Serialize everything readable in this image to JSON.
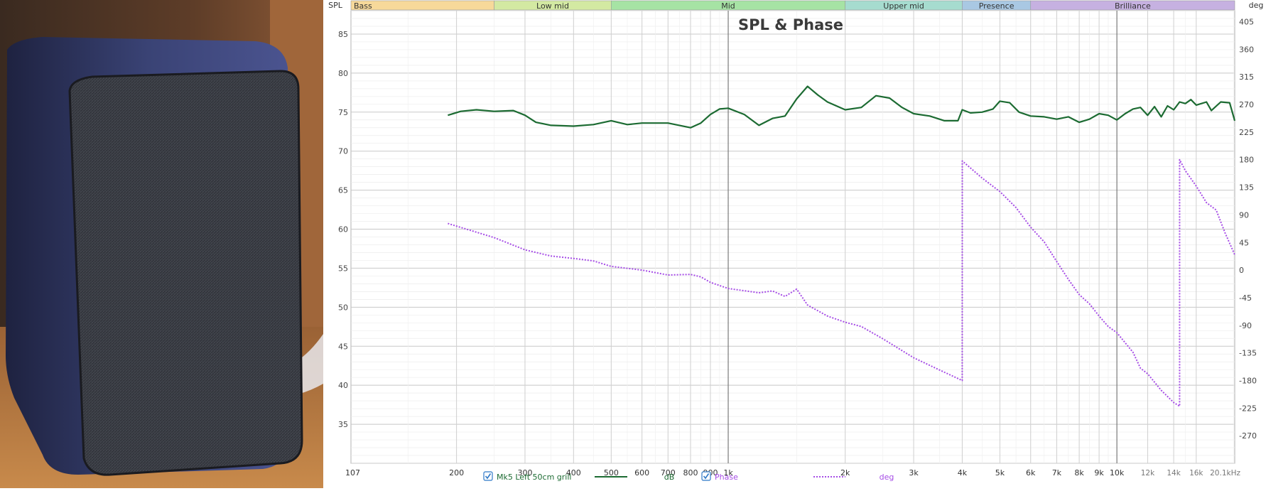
{
  "chart_data": {
    "type": "line",
    "title": "SPL & Phase",
    "left_axis": {
      "label": "SPL",
      "ticks": [
        35,
        40,
        45,
        50,
        55,
        60,
        65,
        70,
        75,
        80,
        85
      ],
      "range": [
        30,
        88
      ]
    },
    "right_axis": {
      "label": "deg",
      "ticks": [
        405,
        360,
        315,
        270,
        225,
        180,
        135,
        90,
        45,
        0,
        -45,
        -90,
        -135,
        -180,
        -225,
        -270
      ],
      "range": [
        -315,
        423
      ]
    },
    "x_axis": {
      "scale": "log",
      "range_hz": [
        107,
        20100
      ],
      "unit": "Hz",
      "tick_values": [
        107,
        200,
        300,
        400,
        500,
        600,
        700,
        800,
        900,
        1000,
        2000,
        3000,
        4000,
        5000,
        6000,
        7000,
        8000,
        9000,
        10000,
        12000,
        14000,
        16000,
        20100
      ],
      "tick_labels": [
        "107",
        "200",
        "300",
        "400",
        "500",
        "600",
        "700",
        "800",
        "900",
        "1k",
        "2k",
        "3k",
        "4k",
        "5k",
        "6k",
        "7k",
        "8k",
        "9k",
        "10k",
        "12k",
        "14k",
        "16k",
        "20.1kHz"
      ],
      "gridlines": "on",
      "minor_gridlines": "on"
    },
    "bands": [
      {
        "name": "Bass",
        "from": 107,
        "to": 250,
        "color": "#f7d99a"
      },
      {
        "name": "Low mid",
        "from": 250,
        "to": 500,
        "color": "#d3e9a2"
      },
      {
        "name": "Mid",
        "from": 500,
        "to": 2000,
        "color": "#a6e3a4"
      },
      {
        "name": "Upper mid",
        "from": 2000,
        "to": 4000,
        "color": "#a6dccf"
      },
      {
        "name": "Presence",
        "from": 4000,
        "to": 6000,
        "color": "#a9c8e3"
      },
      {
        "name": "Brilliance",
        "from": 6000,
        "to": 20100,
        "color": "#c6b1e1"
      }
    ],
    "series": [
      {
        "name": "Mk5 Left 50cm grill",
        "unit": "dB",
        "axis": "left",
        "color": "#1c6b32",
        "style": "solid",
        "points": [
          [
            190,
            74.6
          ],
          [
            205,
            75.1
          ],
          [
            225,
            75.3
          ],
          [
            250,
            75.1
          ],
          [
            280,
            75.2
          ],
          [
            300,
            74.6
          ],
          [
            320,
            73.7
          ],
          [
            350,
            73.3
          ],
          [
            400,
            73.2
          ],
          [
            450,
            73.4
          ],
          [
            500,
            73.9
          ],
          [
            550,
            73.4
          ],
          [
            600,
            73.6
          ],
          [
            700,
            73.6
          ],
          [
            800,
            73.0
          ],
          [
            850,
            73.6
          ],
          [
            900,
            74.7
          ],
          [
            950,
            75.4
          ],
          [
            1000,
            75.5
          ],
          [
            1100,
            74.7
          ],
          [
            1200,
            73.3
          ],
          [
            1300,
            74.2
          ],
          [
            1400,
            74.5
          ],
          [
            1500,
            76.7
          ],
          [
            1600,
            78.3
          ],
          [
            1700,
            77.2
          ],
          [
            1800,
            76.3
          ],
          [
            2000,
            75.3
          ],
          [
            2200,
            75.6
          ],
          [
            2400,
            77.1
          ],
          [
            2600,
            76.8
          ],
          [
            2800,
            75.6
          ],
          [
            3000,
            74.8
          ],
          [
            3300,
            74.5
          ],
          [
            3600,
            73.9
          ],
          [
            3900,
            73.9
          ],
          [
            4000,
            75.3
          ],
          [
            4200,
            74.9
          ],
          [
            4500,
            75.0
          ],
          [
            4800,
            75.4
          ],
          [
            5000,
            76.4
          ],
          [
            5300,
            76.2
          ],
          [
            5600,
            75.0
          ],
          [
            6000,
            74.5
          ],
          [
            6500,
            74.4
          ],
          [
            7000,
            74.1
          ],
          [
            7500,
            74.4
          ],
          [
            8000,
            73.7
          ],
          [
            8500,
            74.1
          ],
          [
            9000,
            74.8
          ],
          [
            9500,
            74.6
          ],
          [
            10000,
            74.0
          ],
          [
            10500,
            74.8
          ],
          [
            11000,
            75.4
          ],
          [
            11500,
            75.6
          ],
          [
            12000,
            74.6
          ],
          [
            12500,
            75.7
          ],
          [
            13000,
            74.4
          ],
          [
            13500,
            75.8
          ],
          [
            14000,
            75.3
          ],
          [
            14500,
            76.3
          ],
          [
            15000,
            76.1
          ],
          [
            15500,
            76.6
          ],
          [
            16000,
            75.9
          ],
          [
            17000,
            76.3
          ],
          [
            17500,
            75.2
          ],
          [
            18500,
            76.3
          ],
          [
            19500,
            76.2
          ],
          [
            20100,
            73.9
          ]
        ]
      },
      {
        "name": "Phase",
        "unit": "deg",
        "axis": "right",
        "color": "#a64de6",
        "style": "dotted",
        "points": [
          [
            190,
            76
          ],
          [
            250,
            53
          ],
          [
            300,
            33
          ],
          [
            350,
            23
          ],
          [
            400,
            19
          ],
          [
            450,
            15
          ],
          [
            500,
            6
          ],
          [
            600,
            0
          ],
          [
            700,
            -8
          ],
          [
            800,
            -7
          ],
          [
            850,
            -11
          ],
          [
            900,
            -20
          ],
          [
            1000,
            -30
          ],
          [
            1200,
            -37
          ],
          [
            1300,
            -34
          ],
          [
            1400,
            -43
          ],
          [
            1500,
            -31
          ],
          [
            1600,
            -57
          ],
          [
            1800,
            -75
          ],
          [
            2000,
            -85
          ],
          [
            2200,
            -92
          ],
          [
            2500,
            -112
          ],
          [
            3000,
            -143
          ],
          [
            3500,
            -163
          ],
          [
            4000,
            -180
          ],
          [
            4001,
            178
          ],
          [
            4500,
            150
          ],
          [
            5000,
            128
          ],
          [
            5500,
            102
          ],
          [
            6000,
            70
          ],
          [
            6500,
            46
          ],
          [
            7000,
            14
          ],
          [
            7500,
            -15
          ],
          [
            8000,
            -40
          ],
          [
            8500,
            -55
          ],
          [
            9000,
            -75
          ],
          [
            9500,
            -92
          ],
          [
            10000,
            -102
          ],
          [
            11000,
            -134
          ],
          [
            11500,
            -160
          ],
          [
            12000,
            -169
          ],
          [
            13000,
            -196
          ],
          [
            14000,
            -216
          ],
          [
            14500,
            -222
          ],
          [
            14501,
            180
          ],
          [
            15000,
            162
          ],
          [
            16000,
            137
          ],
          [
            17000,
            110
          ],
          [
            18000,
            98
          ],
          [
            19000,
            60
          ],
          [
            20100,
            25
          ]
        ]
      }
    ],
    "legend": {
      "placement": "bottom",
      "items": [
        {
          "checked": true,
          "name": "Mk5 Left 50cm grill",
          "unit": "dB"
        },
        {
          "checked": true,
          "name": "Phase",
          "unit": "deg"
        }
      ]
    }
  },
  "colors": {
    "spl": "#1c6b32",
    "phase": "#a64de6",
    "checkbox": "#2f79c7"
  },
  "photo": {
    "description_icon": "speaker-grille-photo"
  }
}
